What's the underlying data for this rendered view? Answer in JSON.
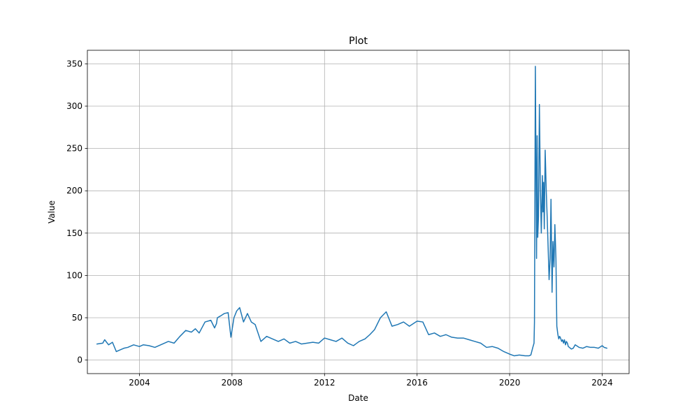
{
  "chart_data": {
    "type": "line",
    "title": "Plot",
    "xlabel": "Date",
    "ylabel": "Value",
    "x_ticks": [
      "2004",
      "2008",
      "2012",
      "2016",
      "2020",
      "2024"
    ],
    "y_ticks": [
      0,
      50,
      100,
      150,
      200,
      250,
      300,
      350
    ],
    "xlim": [
      "2001-10-01",
      "2025-03-01"
    ],
    "ylim": [
      -16,
      366
    ],
    "grid": true,
    "line_color": "#1f77b4",
    "series": [
      {
        "x": [
          "2002-03-01",
          "2002-06-01",
          "2002-07-01",
          "2002-09-01",
          "2002-11-01",
          "2003-01-01",
          "2003-03-01",
          "2003-05-01",
          "2003-07-01",
          "2003-10-01",
          "2004-01-01",
          "2004-03-01",
          "2004-06-01",
          "2004-09-01",
          "2005-01-01",
          "2005-04-01",
          "2005-07-01",
          "2005-10-01",
          "2006-01-01",
          "2006-04-01",
          "2006-06-01",
          "2006-08-01",
          "2006-11-01",
          "2007-02-01",
          "2007-04-01",
          "2007-05-01",
          "2007-05-15",
          "2007-07-01",
          "2007-09-01",
          "2007-11-01",
          "2007-12-15",
          "2008-02-01",
          "2008-03-15",
          "2008-05-01",
          "2008-07-01",
          "2008-09-01",
          "2008-11-01",
          "2009-01-01",
          "2009-04-01",
          "2009-07-01",
          "2009-10-01",
          "2010-01-01",
          "2010-04-01",
          "2010-07-01",
          "2010-10-01",
          "2011-01-01",
          "2011-04-01",
          "2011-07-01",
          "2011-10-01",
          "2012-01-01",
          "2012-04-01",
          "2012-07-01",
          "2012-10-01",
          "2013-01-01",
          "2013-04-01",
          "2013-07-01",
          "2013-10-01",
          "2013-12-15",
          "2014-03-01",
          "2014-06-01",
          "2014-09-01",
          "2014-12-01",
          "2015-03-01",
          "2015-06-01",
          "2015-09-01",
          "2015-11-01",
          "2016-01-01",
          "2016-04-01",
          "2016-07-01",
          "2016-10-01",
          "2017-01-01",
          "2017-04-01",
          "2017-07-01",
          "2017-10-01",
          "2018-01-01",
          "2018-04-01",
          "2018-07-01",
          "2018-10-01",
          "2019-01-01",
          "2019-04-01",
          "2019-07-01",
          "2019-10-01",
          "2020-01-01",
          "2020-03-15",
          "2020-06-01",
          "2020-09-01",
          "2020-11-01",
          "2020-12-01",
          "2021-01-01",
          "2021-01-20",
          "2021-01-27",
          "2021-02-10",
          "2021-03-01",
          "2021-03-10",
          "2021-03-20",
          "2021-04-01",
          "2021-04-15",
          "2021-05-01",
          "2021-05-15",
          "2021-06-01",
          "2021-06-10",
          "2021-06-20",
          "2021-07-01",
          "2021-07-15",
          "2021-08-01",
          "2021-08-15",
          "2021-09-01",
          "2021-09-15",
          "2021-10-01",
          "2021-10-15",
          "2021-11-01",
          "2021-11-15",
          "2021-12-01",
          "2021-12-15",
          "2022-01-01",
          "2022-01-15",
          "2022-02-01",
          "2022-02-15",
          "2022-03-01",
          "2022-03-15",
          "2022-04-01",
          "2022-04-15",
          "2022-05-01",
          "2022-05-15",
          "2022-06-01",
          "2022-06-15",
          "2022-07-01",
          "2022-07-15",
          "2022-08-01",
          "2022-09-01",
          "2022-10-01",
          "2022-11-01",
          "2023-01-01",
          "2023-03-01",
          "2023-05-01",
          "2023-07-01",
          "2023-09-01",
          "2023-11-01",
          "2024-01-01",
          "2024-02-01",
          "2024-03-15"
        ],
        "y": [
          19,
          20,
          24,
          18,
          21,
          10,
          12,
          14,
          15,
          18,
          16,
          18,
          17,
          15,
          19,
          22,
          20,
          28,
          35,
          33,
          37,
          32,
          45,
          47,
          38,
          43,
          50,
          52,
          55,
          56,
          27,
          50,
          58,
          62,
          45,
          55,
          45,
          42,
          22,
          28,
          25,
          22,
          25,
          20,
          22,
          19,
          20,
          21,
          20,
          26,
          24,
          22,
          26,
          20,
          17,
          22,
          25,
          30,
          36,
          50,
          57,
          40,
          42,
          45,
          40,
          43,
          46,
          45,
          30,
          32,
          28,
          30,
          27,
          26,
          26,
          24,
          22,
          20,
          15,
          16,
          14,
          10,
          7,
          5,
          6,
          5,
          5,
          6,
          15,
          20,
          45,
          347,
          120,
          265,
          145,
          170,
          302,
          200,
          150,
          218,
          175,
          210,
          155,
          248,
          200,
          170,
          130,
          95,
          120,
          190,
          80,
          140,
          110,
          160,
          120,
          40,
          30,
          25,
          28,
          26,
          22,
          24,
          20,
          24,
          18,
          22,
          20,
          16,
          15,
          13,
          14,
          18,
          15,
          14,
          16,
          15,
          15,
          14,
          17,
          15,
          14
        ]
      }
    ]
  }
}
